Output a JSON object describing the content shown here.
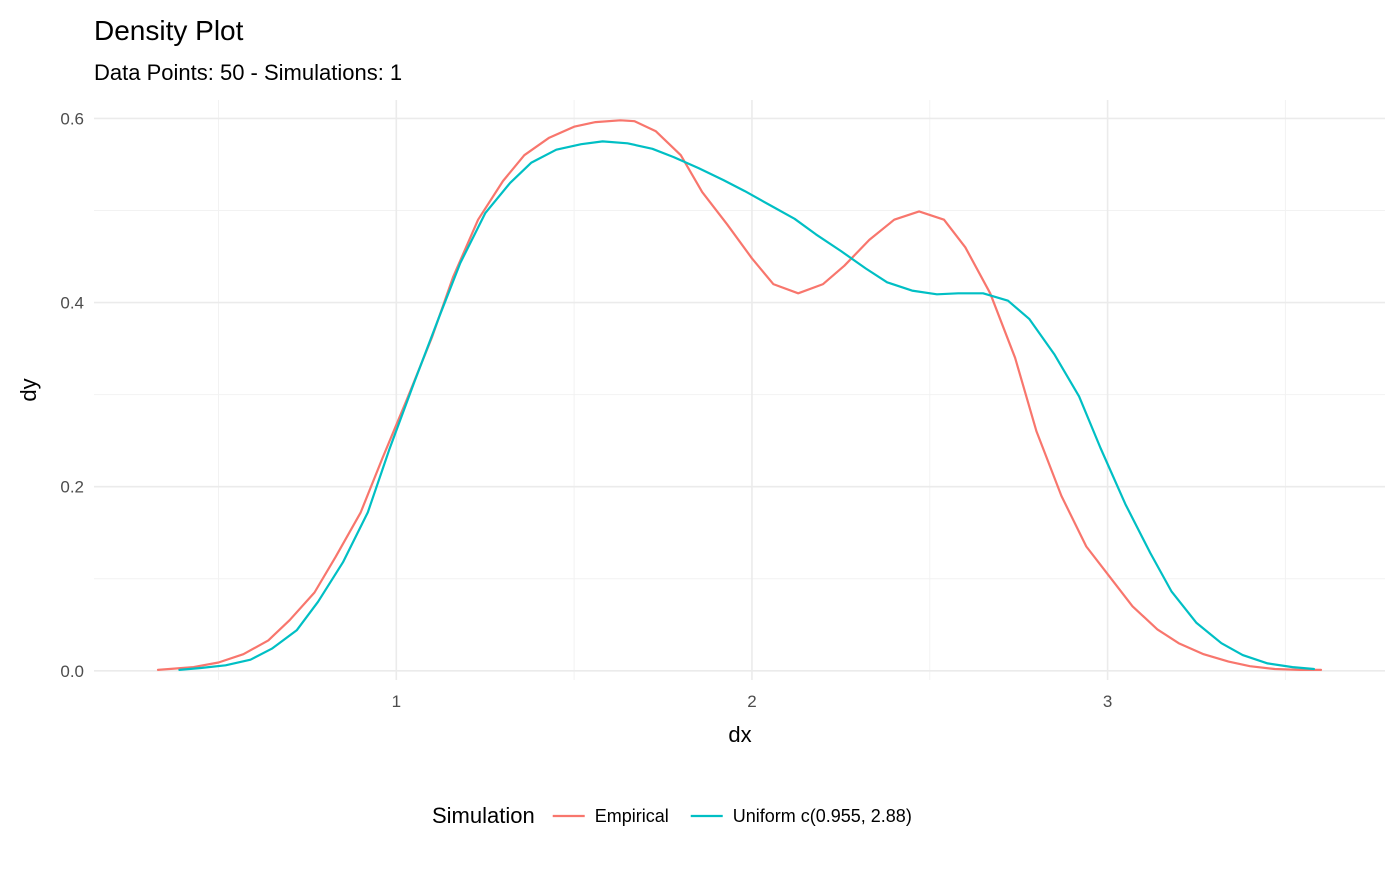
{
  "chart_data": {
    "type": "line",
    "title": "Density Plot",
    "subtitle": "Data Points: 50 - Simulations: 1",
    "xlabel": "dx",
    "ylabel": "dy",
    "xlim": [
      0.15,
      3.78
    ],
    "ylim": [
      -0.01,
      0.62
    ],
    "x_ticks": [
      1,
      2,
      3
    ],
    "x_tick_labels": [
      "1",
      "2",
      "3"
    ],
    "x_minor_ticks": [
      0.5,
      1.5,
      2.5,
      3.5
    ],
    "y_ticks": [
      0.0,
      0.2,
      0.4,
      0.6
    ],
    "y_tick_labels": [
      "0.0",
      "0.2",
      "0.4",
      "0.6"
    ],
    "y_minor_ticks": [
      0.1,
      0.3,
      0.5
    ],
    "grid": true,
    "legend": {
      "title": "Simulation",
      "position": "bottom"
    },
    "series": [
      {
        "name": "Empirical",
        "color": "#F8766D",
        "x": [
          0.33,
          0.43,
          0.5,
          0.57,
          0.64,
          0.7,
          0.77,
          0.83,
          0.9,
          0.96,
          1.03,
          1.1,
          1.16,
          1.23,
          1.3,
          1.36,
          1.43,
          1.5,
          1.56,
          1.63,
          1.67,
          1.73,
          1.8,
          1.86,
          1.93,
          2.0,
          2.06,
          2.13,
          2.2,
          2.26,
          2.33,
          2.4,
          2.47,
          2.54,
          2.6,
          2.67,
          2.74,
          2.8,
          2.87,
          2.94,
          3.0,
          3.07,
          3.14,
          3.2,
          3.27,
          3.34,
          3.4,
          3.47,
          3.54,
          3.6
        ],
        "y": [
          0.001,
          0.004,
          0.009,
          0.018,
          0.033,
          0.055,
          0.085,
          0.124,
          0.172,
          0.23,
          0.295,
          0.362,
          0.428,
          0.49,
          0.532,
          0.56,
          0.579,
          0.591,
          0.596,
          0.598,
          0.597,
          0.586,
          0.56,
          0.52,
          0.485,
          0.448,
          0.42,
          0.41,
          0.42,
          0.44,
          0.468,
          0.49,
          0.499,
          0.49,
          0.46,
          0.41,
          0.34,
          0.26,
          0.19,
          0.135,
          0.105,
          0.07,
          0.045,
          0.03,
          0.018,
          0.01,
          0.005,
          0.002,
          0.001,
          0.001
        ]
      },
      {
        "name": "Uniform c(0.955, 2.88)",
        "color": "#00BFC4",
        "x": [
          0.39,
          0.45,
          0.52,
          0.59,
          0.65,
          0.72,
          0.78,
          0.85,
          0.92,
          0.98,
          1.05,
          1.12,
          1.18,
          1.25,
          1.32,
          1.38,
          1.45,
          1.52,
          1.58,
          1.65,
          1.72,
          1.78,
          1.85,
          1.92,
          1.98,
          2.05,
          2.12,
          2.18,
          2.25,
          2.32,
          2.38,
          2.45,
          2.52,
          2.58,
          2.65,
          2.72,
          2.78,
          2.85,
          2.92,
          2.98,
          3.05,
          3.12,
          3.18,
          3.25,
          3.32,
          3.38,
          3.45,
          3.52,
          3.58
        ],
        "y": [
          0.001,
          0.003,
          0.006,
          0.012,
          0.024,
          0.044,
          0.075,
          0.118,
          0.172,
          0.24,
          0.313,
          0.384,
          0.443,
          0.497,
          0.53,
          0.552,
          0.566,
          0.572,
          0.575,
          0.573,
          0.567,
          0.558,
          0.546,
          0.533,
          0.521,
          0.506,
          0.491,
          0.474,
          0.456,
          0.437,
          0.422,
          0.413,
          0.409,
          0.41,
          0.41,
          0.402,
          0.382,
          0.344,
          0.298,
          0.242,
          0.181,
          0.128,
          0.086,
          0.052,
          0.03,
          0.017,
          0.008,
          0.004,
          0.002
        ]
      }
    ]
  }
}
